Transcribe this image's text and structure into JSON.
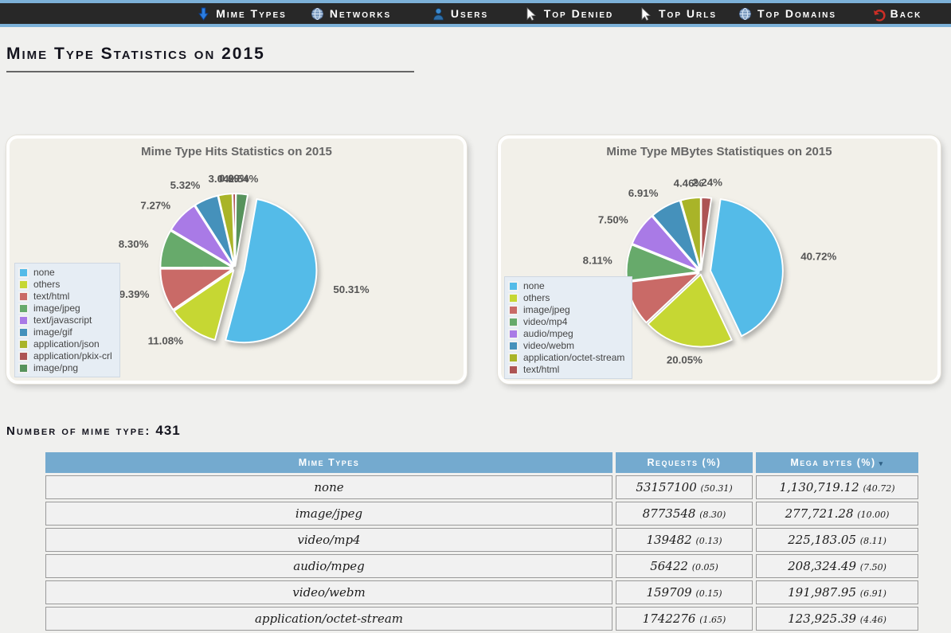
{
  "nav": {
    "items": [
      {
        "label": "Mime Types",
        "icon": "down-arrow-icon"
      },
      {
        "label": "Networks",
        "icon": "network-globe-icon"
      },
      {
        "label": "Users",
        "icon": "user-icon"
      },
      {
        "label": "Top Denied",
        "icon": "cursor-icon"
      },
      {
        "label": "Top Urls",
        "icon": "cursor-icon"
      },
      {
        "label": "Top Domains",
        "icon": "globe-icon"
      },
      {
        "label": "Back",
        "icon": "back-arrow-icon"
      }
    ]
  },
  "page": {
    "title": "Mime Type Statistics on 2015",
    "count_label": "Number of mime type:",
    "count_value": "431"
  },
  "chart_data": [
    {
      "type": "pie",
      "title": "Mime Type Hits Statistics on 2015",
      "legend_position": "left",
      "start_angle_deg": 10,
      "slices": [
        {
          "label": "none",
          "value": 50.31,
          "color": "#54bbe8"
        },
        {
          "label": "others",
          "value": 11.08,
          "color": "#c6d733"
        },
        {
          "label": "text/html",
          "value": 9.39,
          "color": "#c96a67"
        },
        {
          "label": "image/jpeg",
          "value": 8.3,
          "color": "#67aa6b"
        },
        {
          "label": "text/javascript",
          "value": 7.27,
          "color": "#a97ae6"
        },
        {
          "label": "image/gif",
          "value": 5.32,
          "color": "#4591bb"
        },
        {
          "label": "application/json",
          "value": 3.04,
          "color": "#a9b428"
        },
        {
          "label": "application/pkix-crl",
          "value": 0.69,
          "color": "#ad5454"
        },
        {
          "label": "image/png",
          "value": 2.54,
          "color": "#57935c"
        }
      ]
    },
    {
      "type": "pie",
      "title": "Mime Type MBytes Statistiques on 2015",
      "legend_position": "left",
      "start_angle_deg": 8,
      "slices": [
        {
          "label": "none",
          "value": 40.72,
          "color": "#54bbe8"
        },
        {
          "label": "others",
          "value": 20.05,
          "color": "#c6d733"
        },
        {
          "label": "image/jpeg",
          "value": 10.0,
          "color": "#c96a67"
        },
        {
          "label": "video/mp4",
          "value": 8.11,
          "color": "#67aa6b"
        },
        {
          "label": "audio/mpeg",
          "value": 7.5,
          "color": "#a97ae6"
        },
        {
          "label": "video/webm",
          "value": 6.91,
          "color": "#4591bb"
        },
        {
          "label": "application/octet-stream",
          "value": 4.46,
          "color": "#a9b428"
        },
        {
          "label": "text/html",
          "value": 2.24,
          "color": "#ad5454"
        }
      ]
    }
  ],
  "table": {
    "headers": [
      "Mime Types",
      "Requests (%)",
      "Mega bytes (%)"
    ],
    "sort_indicator": "▾",
    "rows": [
      {
        "mime": "none",
        "requests": "53157100",
        "requests_pct": "(50.31)",
        "mbytes": "1,130,719.12",
        "mbytes_pct": "(40.72)"
      },
      {
        "mime": "image/jpeg",
        "requests": "8773548",
        "requests_pct": "(8.30)",
        "mbytes": "277,721.28",
        "mbytes_pct": "(10.00)"
      },
      {
        "mime": "video/mp4",
        "requests": "139482",
        "requests_pct": "(0.13)",
        "mbytes": "225,183.05",
        "mbytes_pct": "(8.11)"
      },
      {
        "mime": "audio/mpeg",
        "requests": "56422",
        "requests_pct": "(0.05)",
        "mbytes": "208,324.49",
        "mbytes_pct": "(7.50)"
      },
      {
        "mime": "video/webm",
        "requests": "159709",
        "requests_pct": "(0.15)",
        "mbytes": "191,987.95",
        "mbytes_pct": "(6.91)"
      },
      {
        "mime": "application/octet-stream",
        "requests": "1742276",
        "requests_pct": "(1.65)",
        "mbytes": "123,925.39",
        "mbytes_pct": "(4.46)"
      }
    ]
  },
  "colors": {
    "nav_background": "#282828",
    "nav_border": "#7cb1d8",
    "page_background": "#f0f0ee",
    "panel_background": "#f2f0e9",
    "table_header": "#74aacf",
    "legend_background": "#e6edf4",
    "label_text": "#555555"
  }
}
